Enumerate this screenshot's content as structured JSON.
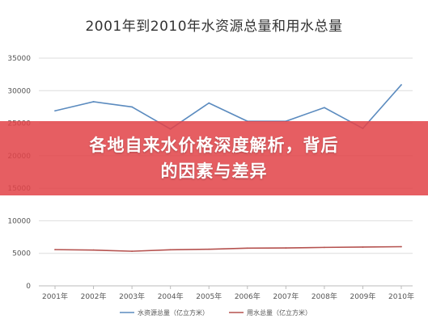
{
  "banner": {
    "line1": "各地自来水价格深度解析，背后",
    "line2": "的因素与差异",
    "color": "#e24448"
  },
  "chart_data": {
    "type": "line",
    "title": "2001年到2010年水资源总量和用水总量",
    "categories": [
      "2001年",
      "2002年",
      "2003年",
      "2004年",
      "2005年",
      "2006年",
      "2007年",
      "2008年",
      "2009年",
      "2010年"
    ],
    "ylim": [
      0,
      35000
    ],
    "yticks": [
      0,
      5000,
      10000,
      15000,
      20000,
      25000,
      30000,
      35000
    ],
    "ytick_labels": [
      "0",
      "5000",
      "10000",
      "15000",
      "20000",
      "25000",
      "30000",
      "35000"
    ],
    "grid": true,
    "legend_position": "bottom",
    "series": [
      {
        "name": "水资源总量（亿立方米）",
        "color": "#5b8bbf",
        "values": [
          26900,
          28300,
          27500,
          24100,
          28100,
          25300,
          25300,
          27400,
          24200,
          30900
        ]
      },
      {
        "name": "用水总量（亿立方米）",
        "color": "#b5524f",
        "values": [
          5570,
          5500,
          5320,
          5550,
          5630,
          5800,
          5820,
          5910,
          5960,
          6020
        ]
      }
    ]
  }
}
